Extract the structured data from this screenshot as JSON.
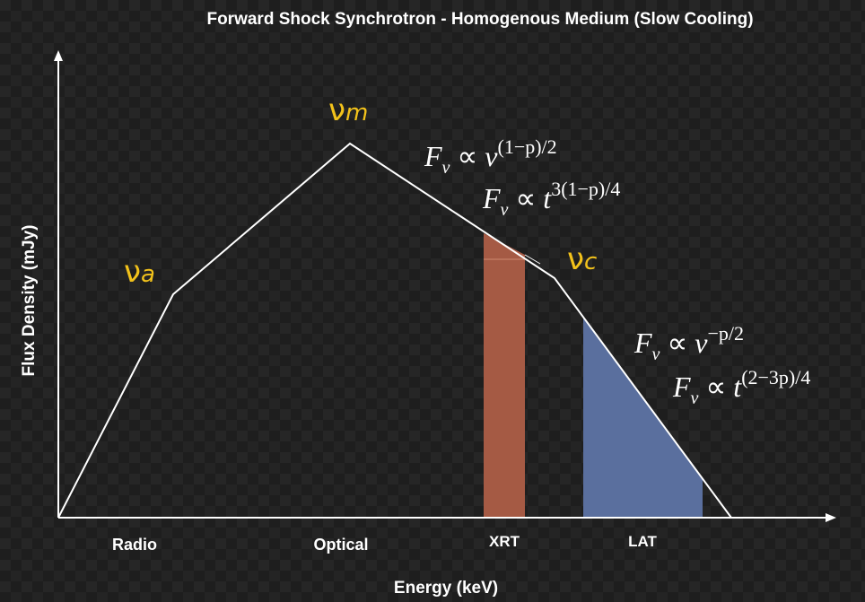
{
  "header": {
    "title": "Forward Shock Synchrotron - Homogenous Medium (Slow Cooling)"
  },
  "axes": {
    "x_label": "Energy (keV)",
    "y_label": "Flux Density (mJy)"
  },
  "breaks": [
    {
      "symbol": "ν",
      "sub": "a"
    },
    {
      "symbol": "ν",
      "sub": "m"
    },
    {
      "symbol": "ν",
      "sub": "c"
    }
  ],
  "bands": [
    "Radio",
    "Optical",
    "XRT",
    "LAT"
  ],
  "formulas": [
    {
      "base": "F",
      "sub": "ν",
      "rel": "∝",
      "var": "ν",
      "exp": "(1−p)/2"
    },
    {
      "base": "F",
      "sub": "ν",
      "rel": "∝",
      "var": "t",
      "exp": "3(1−p)/4"
    },
    {
      "base": "F",
      "sub": "ν",
      "rel": "∝",
      "var": "ν",
      "exp": "−p/2"
    },
    {
      "base": "F",
      "sub": "ν",
      "rel": "∝",
      "var": "t",
      "exp": "(2−3p)/4"
    }
  ]
}
